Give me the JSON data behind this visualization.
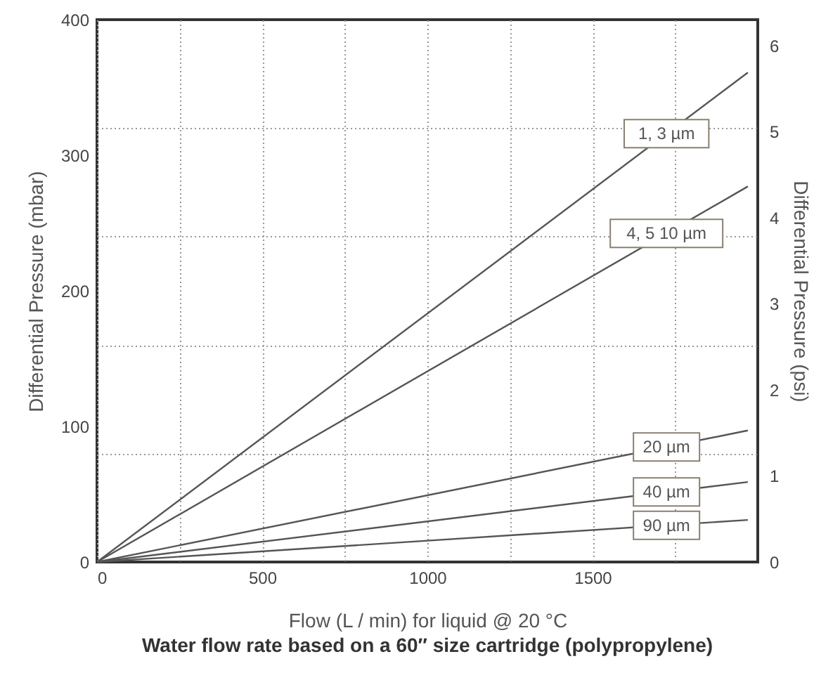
{
  "chart_data": {
    "type": "line",
    "title": "Water flow rate based on a 60″ size cartridge (polypropylene)",
    "xlabel": "Flow (L / min) for liquid @ 20 °C",
    "ylabel": "Differential Pressure (mbar)",
    "y2label": "Differential Pressure (psi)",
    "x": [
      0,
      1970
    ],
    "series": [
      {
        "name": "1, 3 µm",
        "color": "#555555",
        "values": [
          0,
          361
        ]
      },
      {
        "name": "4, 5 10 µm",
        "color": "#555555",
        "values": [
          0,
          277
        ]
      },
      {
        "name": "20 µm",
        "color": "#555555",
        "values": [
          0,
          97
        ]
      },
      {
        "name": "40 µm",
        "color": "#555555",
        "values": [
          0,
          59
        ]
      },
      {
        "name": "90 µm",
        "color": "#555555",
        "values": [
          0,
          31
        ]
      }
    ],
    "xlim": [
      0,
      2000
    ],
    "xticks": [
      0,
      {
        "value": 250,
        "label": null
      },
      500,
      {
        "value": 750,
        "label": null
      },
      1000,
      {
        "value": 1250,
        "label": null
      },
      1500,
      {
        "value": 1750,
        "label": null
      }
    ],
    "ylim": [
      0,
      400
    ],
    "yticks": [
      0,
      {
        "value": 80,
        "label": null
      },
      100,
      {
        "value": 160,
        "label": null
      },
      200,
      {
        "value": 240,
        "label": null
      },
      300,
      {
        "value": 320,
        "label": null
      },
      400
    ],
    "y2lim": [
      0,
      6.3
    ],
    "y2ticks": [
      0,
      1,
      2,
      3,
      4,
      5,
      6
    ],
    "grid": true,
    "marker": "none",
    "line_style": "solid"
  }
}
